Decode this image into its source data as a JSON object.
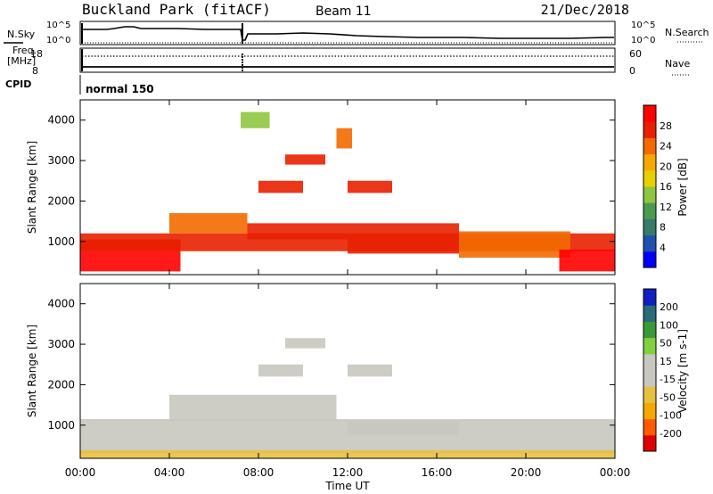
{
  "header": {
    "station": "Buckland Park (fitACF)",
    "beam": "Beam 11",
    "date": "21/Dec/2018"
  },
  "summary": {
    "nsky_label": "N.Sky",
    "nsearch_label": "N.Search",
    "freq_label_1": "Freq.",
    "freq_label_2": "[MHz]",
    "nave_label": "Nave",
    "cpid_label": "CPID",
    "cpid_value": "normal 150",
    "noise_ticks": [
      "10^5",
      "10^0"
    ],
    "freq_ticks": [
      "18",
      "8"
    ],
    "nave_ticks": [
      "60",
      "0"
    ]
  },
  "colors": {
    "power": [
      "#0000ff",
      "#2050b0",
      "#3a7a6a",
      "#4a9a50",
      "#8ec63f",
      "#e8d000",
      "#f7a800",
      "#f26a00",
      "#e82000",
      "#ff0000"
    ],
    "velocity": [
      "#e00000",
      "#ff5a00",
      "#f7a800",
      "#e8c040",
      "#c8c8c0",
      "#c8c8c0",
      "#80d040",
      "#3a9a3a",
      "#2a6a7a",
      "#1020c0"
    ]
  },
  "chart_data": [
    {
      "type": "heatmap",
      "name": "power",
      "xlabel": "",
      "ylabel": "Slant Range [km]",
      "x_ticks": [
        "00:00",
        "04:00",
        "08:00",
        "12:00",
        "16:00",
        "20:00",
        "00:00"
      ],
      "x_range_hours": [
        0,
        24
      ],
      "ylim": [
        180,
        4500
      ],
      "y_ticks": [
        1000,
        2000,
        3000,
        4000
      ],
      "colorbar": {
        "label": "Power [dB]",
        "ticks": [
          "28",
          "24",
          "20",
          "16",
          "12",
          "8",
          "4"
        ],
        "range": [
          0,
          30
        ]
      },
      "regions": [
        {
          "t0": 0.0,
          "t1": 4.5,
          "r0": 260,
          "r1": 1050,
          "v": 27
        },
        {
          "t0": 0.0,
          "t1": 24.0,
          "r0": 760,
          "r1": 1200,
          "v": 24
        },
        {
          "t0": 4.0,
          "t1": 7.5,
          "r0": 1200,
          "r1": 1700,
          "v": 22
        },
        {
          "t0": 7.5,
          "t1": 12.0,
          "r0": 1050,
          "r1": 1450,
          "v": 24
        },
        {
          "t0": 12.0,
          "t1": 17.0,
          "r0": 700,
          "r1": 1450,
          "v": 26
        },
        {
          "t0": 17.0,
          "t1": 22.0,
          "r0": 600,
          "r1": 1250,
          "v": 21
        },
        {
          "t0": 21.5,
          "t1": 24.0,
          "r0": 260,
          "r1": 800,
          "v": 27
        },
        {
          "t0": 8.0,
          "t1": 10.0,
          "r0": 2200,
          "r1": 2500,
          "v": 25
        },
        {
          "t0": 9.2,
          "t1": 11.0,
          "r0": 2900,
          "r1": 3150,
          "v": 24
        },
        {
          "t0": 12.0,
          "t1": 14.0,
          "r0": 2200,
          "r1": 2500,
          "v": 26
        },
        {
          "t0": 11.5,
          "t1": 12.2,
          "r0": 3300,
          "r1": 3800,
          "v": 22
        },
        {
          "t0": 7.2,
          "t1": 8.5,
          "r0": 3800,
          "r1": 4200,
          "v": 14
        }
      ]
    },
    {
      "type": "heatmap",
      "name": "velocity",
      "xlabel": "Time UT",
      "ylabel": "Slant Range [km]",
      "x_ticks": [
        "00:00",
        "04:00",
        "08:00",
        "12:00",
        "16:00",
        "20:00",
        "00:00"
      ],
      "x_range_hours": [
        0,
        24
      ],
      "ylim": [
        180,
        4500
      ],
      "y_ticks": [
        1000,
        2000,
        3000,
        4000
      ],
      "colorbar": {
        "label": "Velocity [m s-1]",
        "ticks": [
          "200",
          "100",
          "50",
          "15",
          "-15",
          "-50",
          "-100",
          "-200"
        ],
        "range": [
          -250,
          250
        ]
      },
      "regions": [
        {
          "t0": 0.0,
          "t1": 24.0,
          "r0": 300,
          "r1": 1150,
          "v": 0
        },
        {
          "t0": 4.0,
          "t1": 11.5,
          "r0": 1100,
          "r1": 1750,
          "v": 0
        },
        {
          "t0": 12.0,
          "t1": 17.0,
          "r0": 750,
          "r1": 1100,
          "v": 30
        },
        {
          "t0": 8.0,
          "t1": 10.0,
          "r0": 2200,
          "r1": 2500,
          "v": -50
        },
        {
          "t0": 9.2,
          "t1": 11.0,
          "r0": 2900,
          "r1": 3150,
          "v": -40
        },
        {
          "t0": 12.0,
          "t1": 14.0,
          "r0": 2200,
          "r1": 2500,
          "v": 0
        },
        {
          "t0": 0.0,
          "t1": 24.0,
          "r0": 180,
          "r1": 380,
          "v": -70
        }
      ]
    }
  ]
}
